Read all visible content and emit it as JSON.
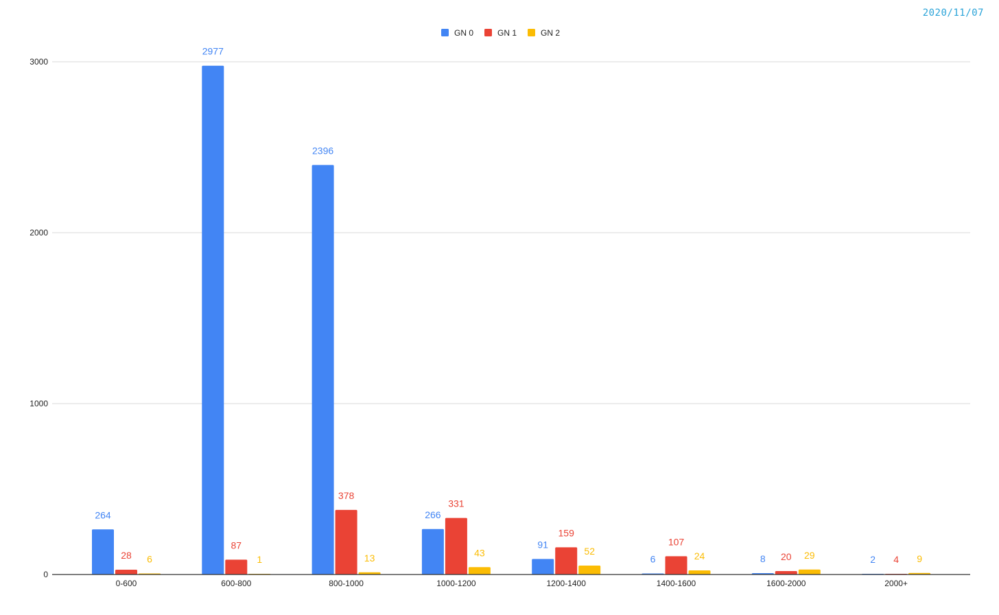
{
  "date_stamp": "2020/11/07",
  "colors": {
    "gn0": "#4285f4",
    "gn1": "#ea4335",
    "gn2": "#fbbc04",
    "grid": "#d9d9d9",
    "axis": "#333333",
    "tick_text": "#222222",
    "date": "#29a3d8"
  },
  "chart_data": {
    "type": "bar",
    "title": "",
    "xlabel": "",
    "ylabel": "",
    "ylim": [
      0,
      3000
    ],
    "yticks": [
      0,
      1000,
      2000,
      3000
    ],
    "grid": true,
    "legend_position": "top-center",
    "categories": [
      "0-600",
      "600-800",
      "800-1000",
      "1000-1200",
      "1200-1400",
      "1400-1600",
      "1600-2000",
      "2000+"
    ],
    "series": [
      {
        "name": "GN 0",
        "color": "#4285f4",
        "values": [
          264,
          2977,
          2396,
          266,
          91,
          6,
          8,
          2
        ]
      },
      {
        "name": "GN 1",
        "color": "#ea4335",
        "values": [
          28,
          87,
          378,
          331,
          159,
          107,
          20,
          4
        ]
      },
      {
        "name": "GN 2",
        "color": "#fbbc04",
        "values": [
          6,
          1,
          13,
          43,
          52,
          24,
          29,
          9
        ]
      }
    ]
  }
}
